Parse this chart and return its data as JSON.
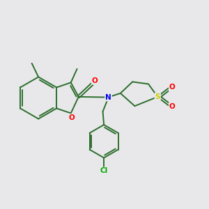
{
  "bg_color": "#e8e8ea",
  "bond_color": "#2d6e2d",
  "atom_colors": {
    "O": "#ff0000",
    "N": "#0000ee",
    "S": "#cccc00",
    "Cl": "#00aa00",
    "C": "#2d6e2d"
  },
  "bond_lw": 1.4,
  "label_fontsize": 8.0
}
